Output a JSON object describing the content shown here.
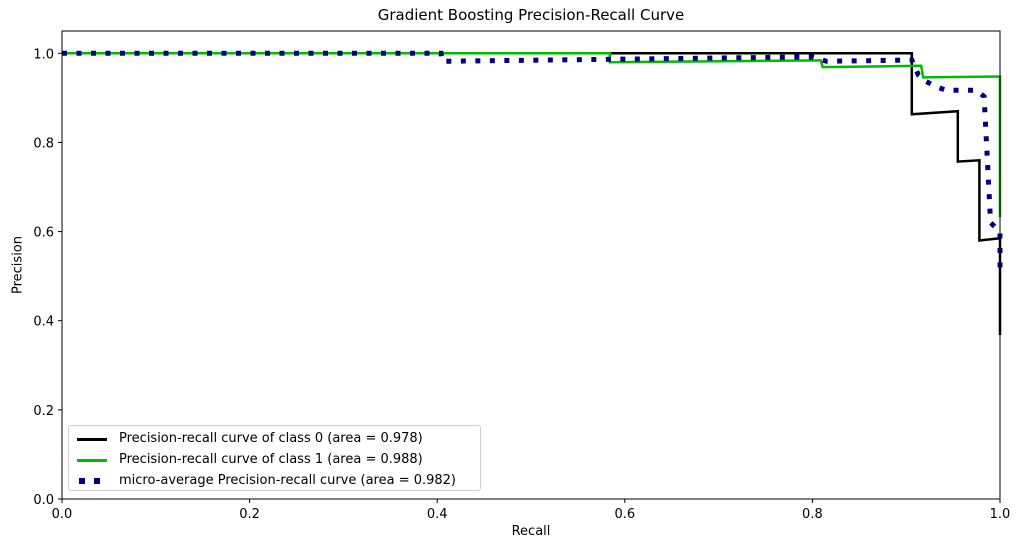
{
  "chart_data": {
    "type": "line",
    "title": "Gradient Boosting Precision-Recall Curve",
    "xlabel": "Recall",
    "ylabel": "Precision",
    "xlim": [
      0.0,
      1.0
    ],
    "ylim": [
      0.0,
      1.05
    ],
    "xticks": [
      "0.0",
      "0.2",
      "0.4",
      "0.6",
      "0.8",
      "1.0"
    ],
    "yticks": [
      "0.0",
      "0.2",
      "0.4",
      "0.6",
      "0.8",
      "1.0"
    ],
    "grid": false,
    "legend_position": "lower left",
    "series": [
      {
        "name": "Precision-recall curve of class 0 (area = 0.978)",
        "color": "#000000",
        "style": "solid",
        "points": [
          [
            0.0,
            1.0
          ],
          [
            0.906,
            1.0
          ],
          [
            0.906,
            0.863
          ],
          [
            0.955,
            0.87
          ],
          [
            0.955,
            0.757
          ],
          [
            0.978,
            0.76
          ],
          [
            0.978,
            0.58
          ],
          [
            1.0,
            0.585
          ],
          [
            1.0,
            0.368
          ]
        ]
      },
      {
        "name": "Precision-recall curve of class 1 (area = 0.988)",
        "color": "#00bb00",
        "style": "solid",
        "points": [
          [
            0.0,
            1.0
          ],
          [
            0.584,
            1.0
          ],
          [
            0.584,
            0.98
          ],
          [
            0.809,
            0.984
          ],
          [
            0.811,
            0.969
          ],
          [
            0.916,
            0.972
          ],
          [
            0.918,
            0.946
          ],
          [
            1.0,
            0.948
          ],
          [
            1.0,
            0.632
          ]
        ]
      },
      {
        "name": "micro-average Precision-recall curve (area = 0.982)",
        "color": "#000080",
        "style": "dotted",
        "points": [
          [
            0.0,
            1.0
          ],
          [
            0.404,
            1.0
          ],
          [
            0.405,
            0.982
          ],
          [
            0.8,
            0.992
          ],
          [
            0.815,
            0.982
          ],
          [
            0.906,
            0.985
          ],
          [
            0.913,
            0.951
          ],
          [
            0.921,
            0.937
          ],
          [
            0.933,
            0.924
          ],
          [
            0.943,
            0.917
          ],
          [
            0.975,
            0.917
          ],
          [
            0.983,
            0.903
          ],
          [
            0.99,
            0.62
          ],
          [
            1.0,
            0.6
          ],
          [
            1.0,
            0.503
          ]
        ]
      }
    ]
  }
}
